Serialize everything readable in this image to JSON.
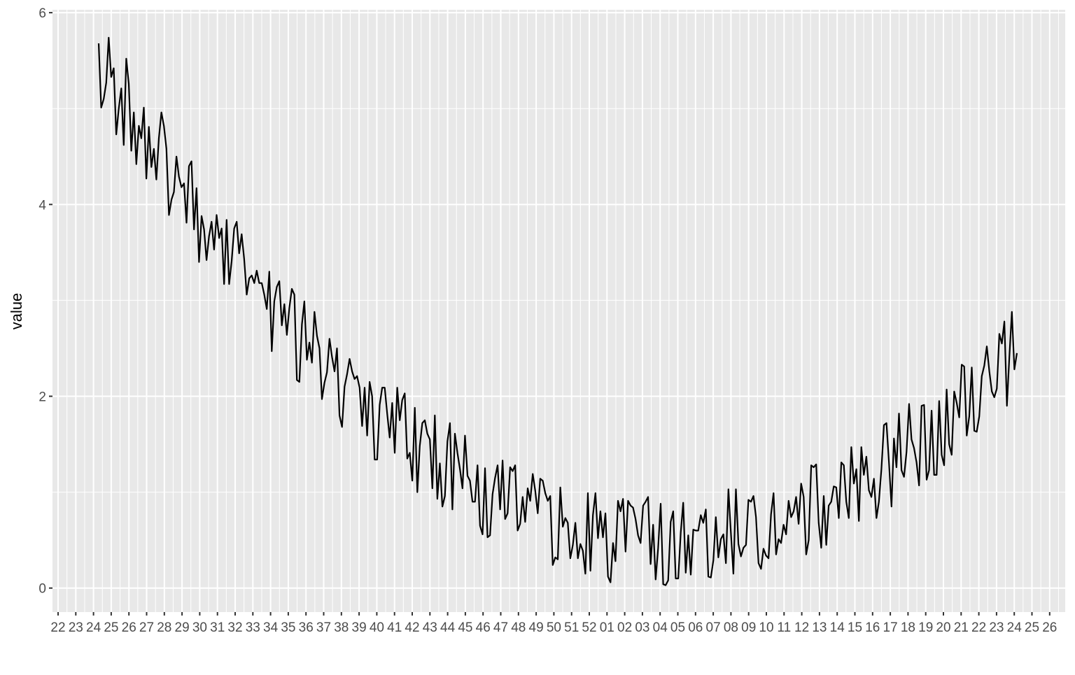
{
  "chart_data": {
    "type": "line",
    "title": "",
    "xlabel": "",
    "ylabel": "value",
    "ylim": [
      -0.25,
      6.03
    ],
    "y_ticks": [
      "0",
      "2",
      "4",
      "6"
    ],
    "y_tick_values": [
      0,
      2,
      4,
      6
    ],
    "x_tick_labels": [
      "22",
      "23",
      "24",
      "25",
      "26",
      "27",
      "28",
      "29",
      "30",
      "31",
      "32",
      "33",
      "34",
      "35",
      "36",
      "37",
      "38",
      "39",
      "40",
      "41",
      "42",
      "43",
      "44",
      "45",
      "46",
      "47",
      "48",
      "49",
      "50",
      "51",
      "52",
      "01",
      "02",
      "03",
      "04",
      "05",
      "06",
      "07",
      "08",
      "09",
      "10",
      "11",
      "12",
      "13",
      "14",
      "15",
      "16",
      "17",
      "18",
      "19",
      "20",
      "21",
      "22",
      "23",
      "24",
      "25",
      "26"
    ],
    "grid": true,
    "line_color": "#000000",
    "panel_color": "#e8e8e8",
    "values": [
      5.68,
      5.01,
      5.1,
      5.27,
      5.74,
      5.33,
      5.42,
      4.73,
      5.0,
      5.21,
      4.62,
      5.52,
      5.26,
      4.56,
      4.96,
      4.42,
      4.82,
      4.69,
      5.01,
      4.27,
      4.81,
      4.39,
      4.58,
      4.26,
      4.69,
      4.96,
      4.82,
      4.58,
      3.89,
      4.05,
      4.13,
      4.5,
      4.29,
      4.18,
      4.22,
      3.81,
      4.4,
      4.45,
      3.74,
      4.17,
      3.4,
      3.88,
      3.74,
      3.42,
      3.67,
      3.82,
      3.53,
      3.89,
      3.65,
      3.75,
      3.17,
      3.84,
      3.17,
      3.41,
      3.75,
      3.82,
      3.49,
      3.69,
      3.43,
      3.06,
      3.23,
      3.26,
      3.18,
      3.31,
      3.18,
      3.18,
      3.06,
      2.91,
      3.3,
      2.47,
      2.99,
      3.14,
      3.2,
      2.74,
      2.96,
      2.64,
      2.92,
      3.12,
      3.06,
      2.17,
      2.15,
      2.75,
      2.99,
      2.38,
      2.56,
      2.35,
      2.88,
      2.63,
      2.5,
      1.97,
      2.14,
      2.25,
      2.6,
      2.41,
      2.26,
      2.5,
      1.8,
      1.68,
      2.1,
      2.23,
      2.39,
      2.26,
      2.18,
      2.21,
      2.09,
      1.69,
      2.09,
      1.59,
      2.15,
      2.0,
      1.34,
      1.34,
      1.91,
      2.09,
      2.09,
      1.82,
      1.57,
      1.93,
      1.41,
      2.09,
      1.75,
      1.96,
      2.03,
      1.35,
      1.41,
      1.12,
      1.88,
      1.0,
      1.48,
      1.72,
      1.75,
      1.61,
      1.55,
      1.04,
      1.8,
      0.93,
      1.3,
      0.85,
      0.96,
      1.53,
      1.72,
      0.82,
      1.61,
      1.41,
      1.24,
      1.04,
      1.59,
      1.17,
      1.12,
      0.9,
      0.9,
      1.28,
      0.65,
      0.56,
      1.25,
      0.53,
      0.55,
      0.98,
      1.15,
      1.28,
      0.82,
      1.33,
      0.72,
      0.78,
      1.26,
      1.22,
      1.28,
      0.6,
      0.67,
      0.95,
      0.69,
      1.04,
      0.91,
      1.19,
      1.02,
      0.78,
      1.14,
      1.12,
      0.99,
      0.91,
      0.96,
      0.24,
      0.32,
      0.3,
      1.05,
      0.64,
      0.73,
      0.68,
      0.31,
      0.45,
      0.68,
      0.31,
      0.46,
      0.39,
      0.15,
      0.99,
      0.18,
      0.76,
      0.99,
      0.52,
      0.8,
      0.53,
      0.78,
      0.12,
      0.06,
      0.47,
      0.28,
      0.91,
      0.8,
      0.93,
      0.38,
      0.91,
      0.86,
      0.84,
      0.72,
      0.55,
      0.47,
      0.86,
      0.9,
      0.95,
      0.25,
      0.66,
      0.09,
      0.42,
      0.88,
      0.04,
      0.03,
      0.08,
      0.69,
      0.8,
      0.1,
      0.1,
      0.58,
      0.89,
      0.16,
      0.55,
      0.14,
      0.61,
      0.6,
      0.6,
      0.76,
      0.68,
      0.82,
      0.12,
      0.11,
      0.29,
      0.74,
      0.32,
      0.51,
      0.56,
      0.26,
      1.03,
      0.58,
      0.15,
      1.03,
      0.46,
      0.33,
      0.42,
      0.45,
      0.92,
      0.9,
      0.96,
      0.74,
      0.26,
      0.2,
      0.41,
      0.34,
      0.31,
      0.77,
      0.99,
      0.35,
      0.51,
      0.47,
      0.66,
      0.56,
      0.91,
      0.74,
      0.8,
      0.95,
      0.67,
      1.09,
      0.95,
      0.35,
      0.5,
      1.28,
      1.26,
      1.29,
      0.68,
      0.42,
      0.96,
      0.45,
      0.86,
      0.9,
      1.06,
      1.05,
      0.73,
      1.31,
      1.28,
      0.9,
      0.73,
      1.47,
      1.09,
      1.24,
      0.7,
      1.47,
      1.18,
      1.37,
      1.02,
      0.95,
      1.14,
      0.73,
      0.9,
      1.24,
      1.7,
      1.72,
      1.31,
      0.85,
      1.56,
      1.26,
      1.82,
      1.23,
      1.16,
      1.42,
      1.92,
      1.55,
      1.46,
      1.31,
      1.07,
      1.9,
      1.91,
      1.13,
      1.23,
      1.85,
      1.18,
      1.18,
      1.95,
      1.39,
      1.28,
      2.07,
      1.5,
      1.39,
      2.05,
      1.93,
      1.78,
      2.33,
      2.31,
      1.59,
      1.79,
      2.3,
      1.64,
      1.63,
      1.79,
      2.21,
      2.32,
      2.52,
      2.26,
      2.05,
      1.99,
      2.08,
      2.65,
      2.55,
      2.78,
      1.9,
      2.41,
      2.88,
      2.28,
      2.45
    ]
  }
}
